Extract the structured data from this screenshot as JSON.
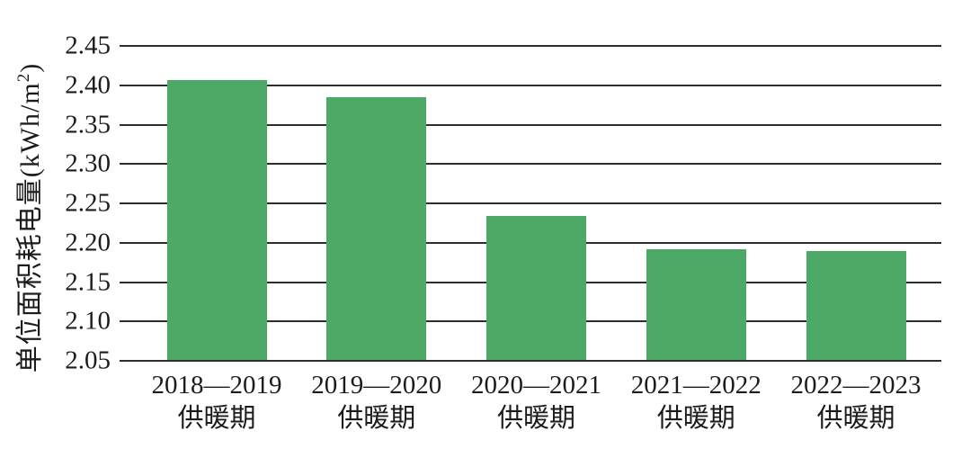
{
  "chart_data": {
    "type": "bar",
    "title": "",
    "xlabel": "",
    "ylabel": "单位面积耗电量(kWh/m²)",
    "ylabel_parts": {
      "prefix": "单位面积耗电量(kWh/m",
      "superscript": "2",
      "suffix": ")"
    },
    "categories": [
      "2018—2019\n供暖期",
      "2019—2020\n供暖期",
      "2020—2021\n供暖期",
      "2021—2022\n供暖期",
      "2022—2023\n供暖期"
    ],
    "values": [
      2.405,
      2.384,
      2.233,
      2.191,
      2.188
    ],
    "ylim": [
      2.05,
      2.45
    ],
    "ytick_step": 0.05,
    "ytick_labels": [
      "2.05",
      "2.10",
      "2.15",
      "2.20",
      "2.25",
      "2.30",
      "2.35",
      "2.40",
      "2.45"
    ],
    "grid": true,
    "legend": false,
    "colors": {
      "bar": "#4DAA66",
      "gridline": "#2d2d2d",
      "text": "#1c1c1c",
      "background": "#ffffff"
    }
  }
}
